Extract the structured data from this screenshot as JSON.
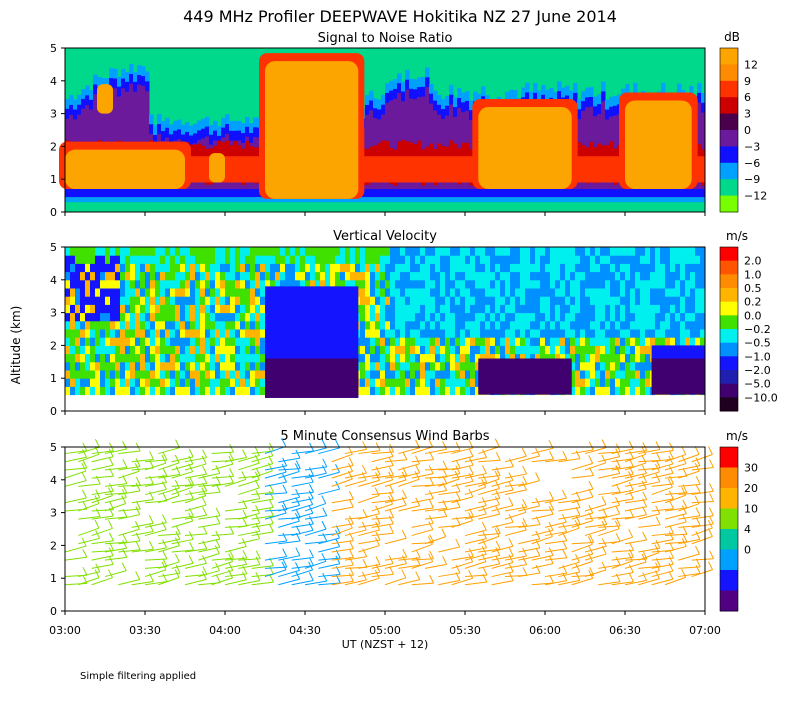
{
  "page": {
    "title": "449 MHz Profiler DEEPWAVE Hokitika NZ 27 June 2014",
    "footnote": "Simple filtering applied"
  },
  "axes": {
    "ylabel": "Altitude (km)",
    "xlabel": "UT  (NZST + 12)",
    "xticks": [
      "03:00",
      "03:30",
      "04:00",
      "04:30",
      "05:00",
      "05:30",
      "06:00",
      "06:30",
      "07:00"
    ],
    "yticks": [
      "0",
      "1",
      "2",
      "3",
      "4",
      "5"
    ]
  },
  "chart_data": [
    {
      "type": "heatmap",
      "title": "Signal to Noise Ratio",
      "units": "dB",
      "x_range": [
        "03:00",
        "07:00"
      ],
      "ylim": [
        0,
        5
      ],
      "colorbar_labels": [
        "12",
        "9",
        "6",
        "3",
        "0",
        "−3",
        "−6",
        "−9",
        "−12"
      ],
      "colors": [
        "#fca400",
        "#ff8c00",
        "#ff3300",
        "#cc0000",
        "#4a004a",
        "#6a1a9a",
        "#1010ff",
        "#00a0ff",
        "#00d88c",
        "#78ff00"
      ],
      "features": [
        {
          "t0": "04:15",
          "t1": "04:50",
          "z0": 0.4,
          "z1": 4.6,
          "value": 12
        },
        {
          "t0": "05:35",
          "t1": "06:10",
          "z0": 0.7,
          "z1": 3.2,
          "value": 12
        },
        {
          "t0": "06:30",
          "t1": "06:55",
          "z0": 0.7,
          "z1": 3.4,
          "value": 12
        },
        {
          "t0": "03:00",
          "t1": "03:45",
          "z0": 0.7,
          "z1": 1.9,
          "value": 9
        }
      ]
    },
    {
      "type": "heatmap",
      "title": "Vertical Velocity",
      "units": "m/s",
      "x_range": [
        "03:00",
        "07:00"
      ],
      "ylim": [
        0,
        5
      ],
      "colorbar_labels": [
        "2.0",
        "1.0",
        "0.5",
        "0.2",
        "0.0",
        "−0.2",
        "−0.5",
        "−1.0",
        "−2.0",
        "−5.0",
        "−10.0"
      ],
      "colors": [
        "#ff0000",
        "#ff5500",
        "#ff8c00",
        "#ffb400",
        "#ffff00",
        "#40e000",
        "#00f0f0",
        "#0090ff",
        "#1414ff",
        "#2020b0",
        "#400070",
        "#200020"
      ],
      "features": [
        {
          "t0": "04:15",
          "t1": "04:50",
          "z0": 0.4,
          "z1": 3.8,
          "value": -2.0
        },
        {
          "t0": "05:35",
          "t1": "06:10",
          "z0": 0.5,
          "z1": 1.5,
          "value": -2.0
        },
        {
          "t0": "06:40",
          "t1": "07:00",
          "z0": 0.5,
          "z1": 2.0,
          "value": -2.0
        }
      ]
    },
    {
      "type": "wind-barbs",
      "title": "5 Minute Consensus Wind Barbs",
      "units": "m/s",
      "x_range": [
        "03:00",
        "07:00"
      ],
      "ylim": [
        0,
        5
      ],
      "colorbar_labels": [
        "30",
        "20",
        "10",
        "4",
        "0"
      ],
      "colors": [
        "#ff0000",
        "#ff8c00",
        "#ffb400",
        "#80e000",
        "#00c8a0",
        "#00a0ff",
        "#1414ff",
        "#500080"
      ],
      "barb_colors_by_time": [
        {
          "t0": "03:00",
          "t1": "04:00",
          "color": "#80e000"
        },
        {
          "t0": "04:15",
          "t1": "04:40",
          "color": "#00a0ff"
        },
        {
          "t0": "04:40",
          "t1": "07:00",
          "color": "#ffa000"
        }
      ]
    }
  ]
}
